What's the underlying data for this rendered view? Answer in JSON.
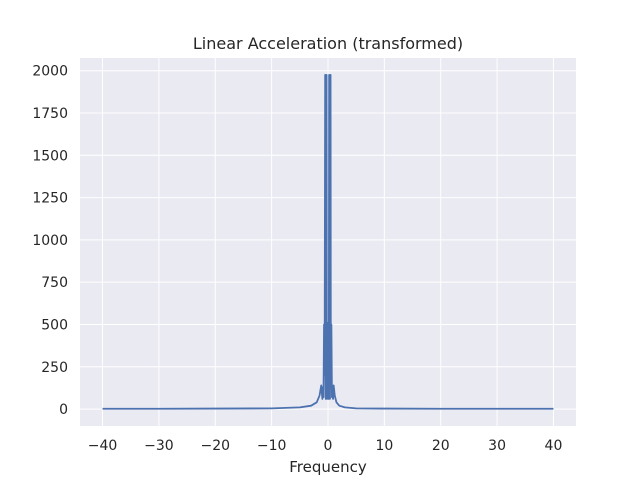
{
  "chart_data": {
    "type": "line",
    "title": "Linear Acceleration (transformed)",
    "xlabel": "Frequency",
    "ylabel": "",
    "xlim": [
      -44,
      44
    ],
    "ylim": [
      -100,
      2075
    ],
    "x_ticks": [
      -40,
      -30,
      -20,
      -10,
      0,
      10,
      20,
      30,
      40
    ],
    "y_ticks": [
      0,
      250,
      500,
      750,
      1000,
      1250,
      1500,
      1750,
      2000
    ],
    "grid": true,
    "background": "#eaeaf2",
    "grid_color": "#ffffff",
    "series": [
      {
        "color": "#4c72b0",
        "x": [
          -40,
          -30,
          -20,
          -10,
          -5,
          -3,
          -2,
          -1.5,
          -1.2,
          -1.0,
          -0.9,
          -0.8,
          -0.7,
          -0.6,
          -0.5,
          -0.45,
          -0.4,
          -0.35,
          -0.3,
          -0.25,
          -0.2,
          -0.15,
          -0.1,
          -0.05,
          0,
          0.05,
          0.1,
          0.15,
          0.2,
          0.25,
          0.3,
          0.35,
          0.4,
          0.45,
          0.5,
          0.6,
          0.7,
          0.8,
          0.9,
          1.0,
          1.2,
          1.5,
          2,
          3,
          5,
          10,
          20,
          30,
          40
        ],
        "y": [
          2,
          2,
          3,
          4,
          10,
          20,
          40,
          80,
          140,
          60,
          130,
          70,
          500,
          200,
          1975,
          300,
          60,
          510,
          150,
          1975,
          250,
          60,
          510,
          120,
          80,
          510,
          60,
          250,
          1975,
          150,
          510,
          60,
          300,
          1975,
          200,
          500,
          70,
          130,
          60,
          140,
          80,
          40,
          20,
          10,
          4,
          3,
          2,
          2,
          2
        ]
      }
    ]
  }
}
